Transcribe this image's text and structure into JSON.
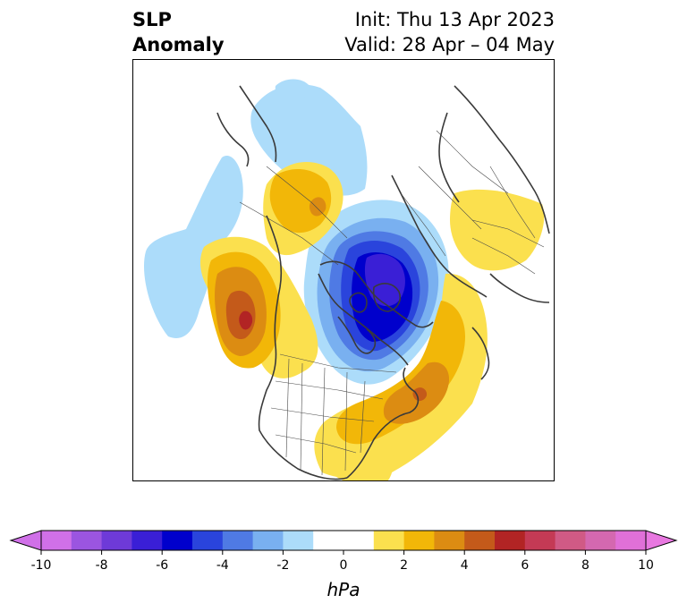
{
  "header": {
    "title_line1": "SLP",
    "title_line2": "Anomaly",
    "init_text": "Init: Thu 13 Apr 2023",
    "valid_text": "Valid: 28 Apr – 04 May"
  },
  "colorbar": {
    "unit": "hPa",
    "tick_labels": [
      "-10",
      "-8",
      "-6",
      "-4",
      "-2",
      "0",
      "2",
      "4",
      "6",
      "8",
      "10"
    ],
    "bins": [
      {
        "from": -10,
        "to": -9,
        "color": "#d070e8"
      },
      {
        "from": -9,
        "to": -8,
        "color": "#9b55e0"
      },
      {
        "from": -8,
        "to": -7,
        "color": "#6e3ad8"
      },
      {
        "from": -7,
        "to": -6,
        "color": "#3a1fd6"
      },
      {
        "from": -6,
        "to": -5,
        "color": "#0000cc"
      },
      {
        "from": -5,
        "to": -4,
        "color": "#2a44dc"
      },
      {
        "from": -4,
        "to": -3,
        "color": "#4f7ae4"
      },
      {
        "from": -3,
        "to": -2,
        "color": "#79b0f0"
      },
      {
        "from": -2,
        "to": -1,
        "color": "#acdcfa"
      },
      {
        "from": -1,
        "to": 1,
        "color": "#ffffff"
      },
      {
        "from": 1,
        "to": 2,
        "color": "#fbe04e"
      },
      {
        "from": 2,
        "to": 3,
        "color": "#f2b708"
      },
      {
        "from": 3,
        "to": 4,
        "color": "#dc8c12"
      },
      {
        "from": 4,
        "to": 5,
        "color": "#c45a1a"
      },
      {
        "from": 5,
        "to": 6,
        "color": "#b22424"
      },
      {
        "from": 6,
        "to": 7,
        "color": "#c43a55"
      },
      {
        "from": 7,
        "to": 8,
        "color": "#d05a85"
      },
      {
        "from": 8,
        "to": 9,
        "color": "#d468b0"
      },
      {
        "from": 9,
        "to": 10,
        "color": "#e070d8"
      }
    ],
    "under_color": "#d070e8",
    "over_color": "#e878e0"
  },
  "map": {
    "projection": "north-polar-stereographic",
    "anomaly_centers": [
      {
        "name": "north-pole-low",
        "min_hpa": -6.5
      },
      {
        "name": "north-pacific-high",
        "max_hpa": 5.5
      },
      {
        "name": "north-atlantic-high",
        "max_hpa": 4.5
      },
      {
        "name": "alaska-high",
        "max_hpa": 3
      },
      {
        "name": "eurasia-high",
        "max_hpa": 2
      }
    ]
  }
}
